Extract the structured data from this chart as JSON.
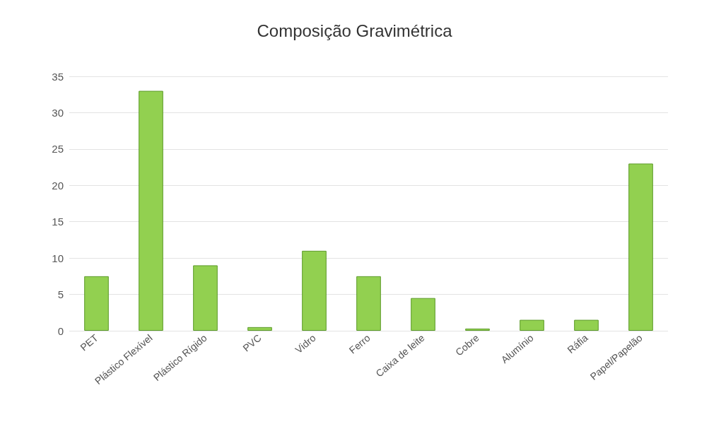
{
  "chart_data": {
    "type": "bar",
    "title": "Composição Gravimétrica",
    "categories": [
      "PET",
      "Plástico Flexível",
      "Plástico Rígido",
      "PVC",
      "Vidro",
      "Ferro",
      "Caixa de leite",
      "Cobre",
      "Alumínio",
      "Ráfia",
      "Papel/Papelão"
    ],
    "values": [
      7.5,
      33,
      9,
      0.5,
      11,
      7.5,
      4.5,
      0.3,
      1.5,
      1.5,
      23
    ],
    "color": "#92d050",
    "ylim": [
      0,
      35
    ],
    "yticks": [
      0,
      5,
      10,
      15,
      20,
      25,
      30,
      35
    ],
    "grid": true
  }
}
